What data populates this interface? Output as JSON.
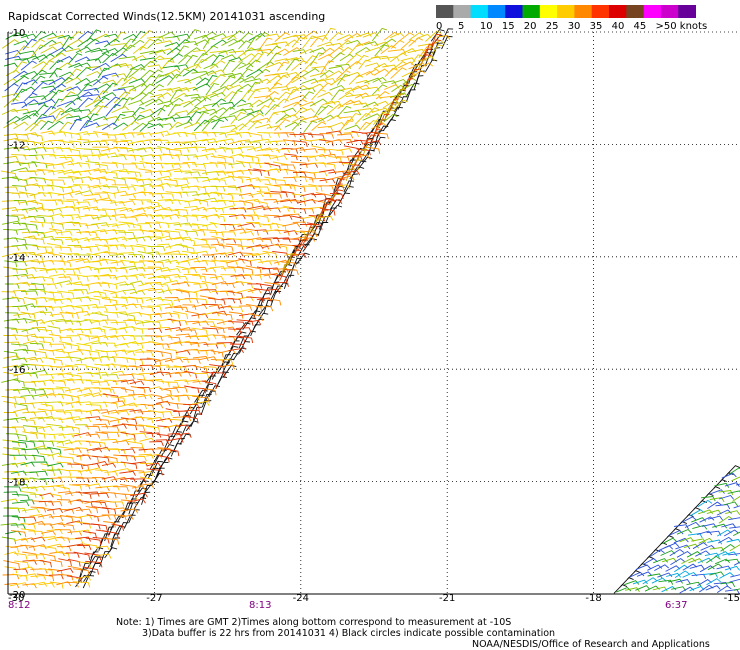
{
  "title": "Rapidscat Corrected Winds(12.5KM) 20141031 ascending",
  "legend": {
    "labels": [
      "0",
      "5",
      "10",
      "15",
      "20",
      "25",
      "30",
      "35",
      "40",
      "45",
      ">50 knots"
    ],
    "colors": [
      "#555555",
      "#aaaaaa",
      "#00ddff",
      "#0088ff",
      "#1010dd",
      "#00aa00",
      "#ffff00",
      "#ffcc00",
      "#ff8800",
      "#ff3300",
      "#dd0000",
      "#774422",
      "#ff00ff",
      "#cc00cc",
      "#660099"
    ]
  },
  "map": {
    "lon_range": [
      -30,
      -15
    ],
    "lat_range": [
      -20,
      -10
    ],
    "lon_ticks": [
      "-30",
      "-27",
      "-24",
      "-21",
      "-18",
      "-15"
    ],
    "lat_ticks": [
      "-10",
      "-12",
      "-14",
      "-16",
      "-18",
      "-20"
    ]
  },
  "time_labels": [
    "8:12",
    "8:13",
    "6:37"
  ],
  "notes": [
    "Note: 1) Times are GMT 2)Times along bottom correspond to measurement at -10S",
    "3)Data buffer is 22 hrs from 20141031 4) Black circles indicate possible contamination",
    "NOAA/NESDIS/Office of Research and Applications"
  ]
}
